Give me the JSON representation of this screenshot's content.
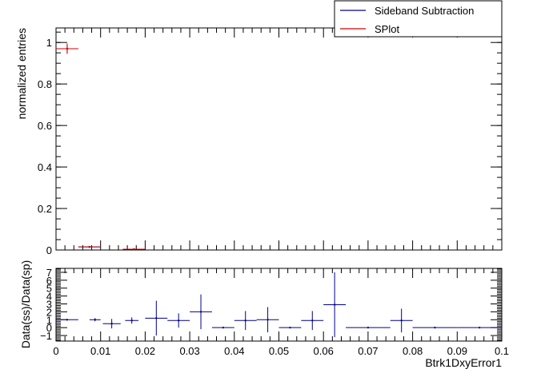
{
  "legend": {
    "position": "top-right",
    "entries": [
      {
        "label": "Sideband Subtraction",
        "color": "#00008b"
      },
      {
        "label": "SPlot",
        "color": "#cc0000"
      }
    ]
  },
  "chart_data": [
    {
      "type": "scatter",
      "panel": "top",
      "xlabel": "",
      "ylabel": "normalized entries",
      "xlim": [
        0,
        0.1
      ],
      "ylim": [
        0,
        1.07
      ],
      "yticks": [
        0,
        0.2,
        0.4,
        0.6,
        0.8,
        1
      ],
      "ytick_labels": [
        "0",
        "0.2",
        "0.4",
        "0.6",
        "0.8",
        "1"
      ],
      "grid": false,
      "series": [
        {
          "name": "Sideband Subtraction",
          "color": "#00008b",
          "points": [
            {
              "x0": 0.0,
              "x1": 0.005,
              "y": 0.97,
              "yerr": 0.02
            },
            {
              "x0": 0.005,
              "x1": 0.01,
              "y": 0.015,
              "yerr": 0.003
            },
            {
              "x0": 0.015,
              "x1": 0.02,
              "y": 0.004,
              "yerr": 0.001
            }
          ]
        },
        {
          "name": "SPlot",
          "color": "#cc0000",
          "points": [
            {
              "x0": 0.0,
              "x1": 0.005,
              "y": 0.97,
              "yerr": 0.025
            },
            {
              "x0": 0.005,
              "x1": 0.01,
              "y": 0.015,
              "yerr": 0.003
            },
            {
              "x0": 0.015,
              "x1": 0.02,
              "y": 0.004,
              "yerr": 0.001
            }
          ]
        }
      ]
    },
    {
      "type": "scatter",
      "panel": "ratio",
      "xlabel": "Btrk1DxyError1",
      "ylabel": "Data(ss)/Data(sp)",
      "xlim": [
        0,
        0.1
      ],
      "ylim": [
        -1.7,
        7.5
      ],
      "xticks": [
        0,
        0.01,
        0.02,
        0.03,
        0.04,
        0.05,
        0.06,
        0.07,
        0.08,
        0.09,
        0.1
      ],
      "xtick_labels": [
        "0",
        "0.01",
        "0.02",
        "0.03",
        "0.04",
        "0.05",
        "0.06",
        "0.07",
        "0.08",
        "0.09",
        "0.1"
      ],
      "yticks": [
        -1,
        0,
        1,
        2,
        3,
        4,
        5,
        6,
        7
      ],
      "ytick_labels": [
        "−1",
        "0",
        "1",
        "2",
        "3",
        "4",
        "5",
        "6",
        "7"
      ],
      "grid": false,
      "series": [
        {
          "name": "Sideband Subtraction",
          "color": "#00008b",
          "points": [
            {
              "x0": 0.0,
              "x1": 0.005,
              "y": 1.0,
              "yerr": 0.03
            },
            {
              "x0": 0.0075,
              "x1": 0.01,
              "y": 1.0,
              "yerr": 0.2
            },
            {
              "x0": 0.0105,
              "x1": 0.0145,
              "y": 0.5,
              "yerr": 0.6
            },
            {
              "x0": 0.0155,
              "x1": 0.0185,
              "y": 0.9,
              "yerr": 0.4
            },
            {
              "x0": 0.02,
              "x1": 0.025,
              "y": 1.2,
              "yerr": 2.2
            },
            {
              "x0": 0.025,
              "x1": 0.03,
              "y": 0.9,
              "yerr": 0.9
            },
            {
              "x0": 0.03,
              "x1": 0.035,
              "y": 2.0,
              "yerr": 2.2
            },
            {
              "x0": 0.035,
              "x1": 0.04,
              "y": 0.0,
              "yerr": 0.03
            },
            {
              "x0": 0.04,
              "x1": 0.045,
              "y": 0.9,
              "yerr": 1.2
            },
            {
              "x0": 0.045,
              "x1": 0.05,
              "y": 1.0,
              "yerr": 1.6
            },
            {
              "x0": 0.05,
              "x1": 0.055,
              "y": 0.0,
              "yerr": 0.03
            },
            {
              "x0": 0.055,
              "x1": 0.06,
              "y": 0.9,
              "yerr": 1.2
            },
            {
              "x0": 0.06,
              "x1": 0.065,
              "y": 2.9,
              "yerr": 4.1
            },
            {
              "x0": 0.065,
              "x1": 0.075,
              "y": 0.0,
              "yerr": 0.03
            },
            {
              "x0": 0.075,
              "x1": 0.08,
              "y": 0.9,
              "yerr": 1.5
            },
            {
              "x0": 0.08,
              "x1": 0.09,
              "y": 0.0,
              "yerr": 0.03
            },
            {
              "x0": 0.09,
              "x1": 0.1,
              "y": 0.0,
              "yerr": 0.03
            }
          ]
        }
      ]
    }
  ]
}
